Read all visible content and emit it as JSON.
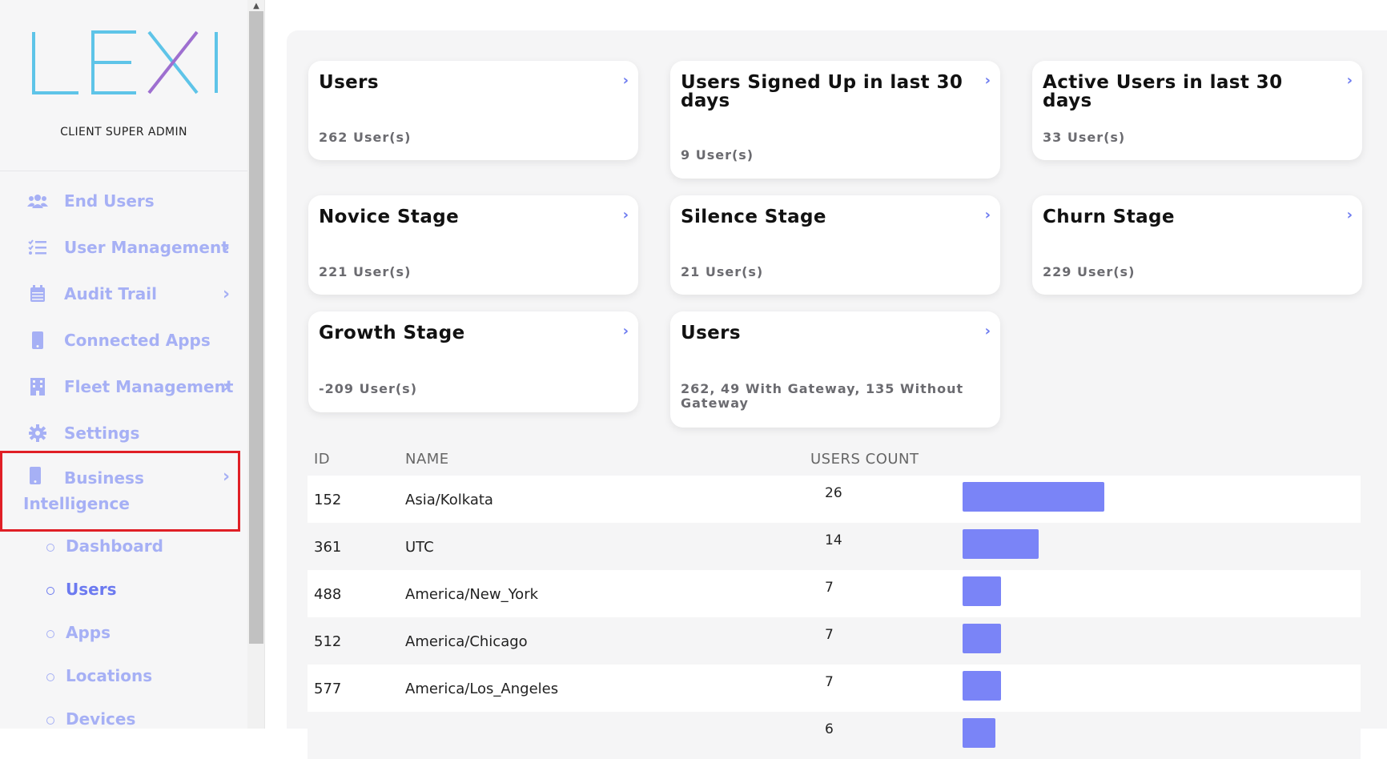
{
  "sidebar": {
    "logo_text": "LEXI",
    "role": "CLIENT SUPER ADMIN",
    "items": [
      {
        "label": "End Users",
        "icon": "users-icon",
        "has_chevron": false
      },
      {
        "label": "User Management",
        "icon": "list-check-icon",
        "has_chevron": true
      },
      {
        "label": "Audit Trail",
        "icon": "calendar-icon",
        "has_chevron": true
      },
      {
        "label": "Connected Apps",
        "icon": "mobile-icon",
        "has_chevron": false
      },
      {
        "label": "Fleet Management",
        "icon": "building-icon",
        "has_chevron": true
      },
      {
        "label": "Settings",
        "icon": "gear-icon",
        "has_chevron": false
      }
    ],
    "bi": {
      "label": "Business Intelligence",
      "icon": "mobile-icon"
    },
    "subitems": [
      {
        "label": "Dashboard",
        "active": false
      },
      {
        "label": "Users",
        "active": true
      },
      {
        "label": "Apps",
        "active": false
      },
      {
        "label": "Locations",
        "active": false
      },
      {
        "label": "Devices",
        "active": false
      }
    ]
  },
  "cards": [
    {
      "title": "Users",
      "value": "262 User(s)"
    },
    {
      "title": "Users Signed Up in last 30 days",
      "value": "9 User(s)"
    },
    {
      "title": "Active Users in last 30 days",
      "value": "33 User(s)"
    },
    {
      "title": "Novice Stage",
      "value": "221 User(s)"
    },
    {
      "title": "Silence Stage",
      "value": "21 User(s)"
    },
    {
      "title": "Churn Stage",
      "value": "229 User(s)"
    },
    {
      "title": "Growth Stage",
      "value": "-209 User(s)"
    },
    {
      "title": "Users",
      "value": "262, 49 With Gateway, 135 Without Gateway"
    }
  ],
  "table": {
    "headers": {
      "id": "ID",
      "name": "NAME",
      "count": "USERS COUNT"
    },
    "rows": [
      {
        "id": "152",
        "name": "Asia/Kolkata",
        "count": "26",
        "value": 26
      },
      {
        "id": "361",
        "name": "UTC",
        "count": "14",
        "value": 14
      },
      {
        "id": "488",
        "name": "America/New_York",
        "count": "7",
        "value": 7
      },
      {
        "id": "512",
        "name": "America/Chicago",
        "count": "7",
        "value": 7
      },
      {
        "id": "577",
        "name": "America/Los_Angeles",
        "count": "7",
        "value": 7
      },
      {
        "id": "",
        "name": "",
        "count": "6",
        "value": 6
      }
    ]
  },
  "colors": {
    "accent": "#6c7af0",
    "nav": "#a6b0f5",
    "bar": "#7a84f7",
    "highlight_border": "#e01f26"
  }
}
